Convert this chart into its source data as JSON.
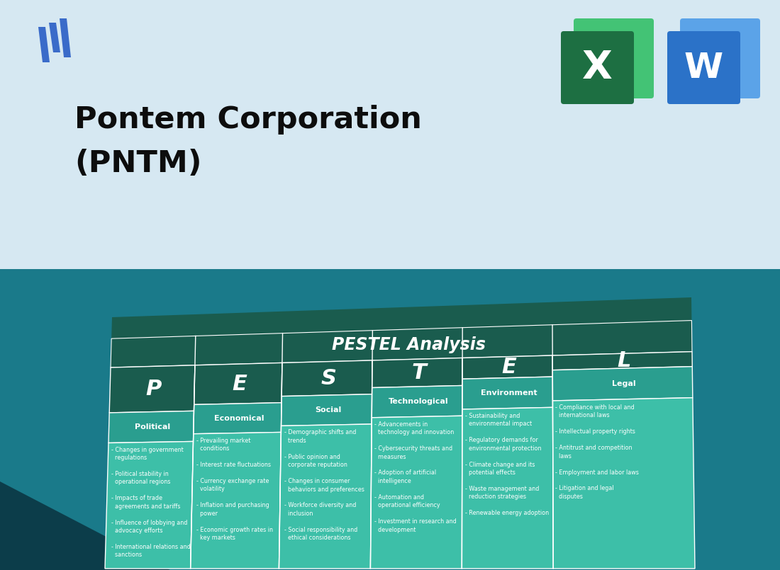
{
  "title_line1": "Pontem Corporation",
  "title_line2": "(PNTM)",
  "pestel_title": "PESTEL Analysis",
  "top_bg": "#d6e8f2",
  "bottom_bg_top": "#1a7a8a",
  "bottom_bg_bot": "#1a6070",
  "table_dark": "#1a5c4e",
  "table_mid": "#2a9e8f",
  "table_light": "#3dbfa8",
  "white": "#ffffff",
  "columns": [
    "P",
    "E",
    "S",
    "T",
    "E",
    "L"
  ],
  "col_labels": [
    "Political",
    "Economical",
    "Social",
    "Technological",
    "Environment",
    "Legal"
  ],
  "col_contents": [
    "- Changes in government\n  regulations\n\n- Political stability in\n  operational regions\n\n- Impacts of trade\n  agreements and tariffs\n\n- Influence of lobbying and\n  advocacy efforts\n\n- International relations and\n  sanctions",
    "- Prevailing market\n  conditions\n\n- Interest rate fluctuations\n\n- Currency exchange rate\n  volatility\n\n- Inflation and purchasing\n  power\n\n- Economic growth rates in\n  key markets",
    "- Demographic shifts and\n  trends\n\n- Public opinion and\n  corporate reputation\n\n- Changes in consumer\n  behaviors and preferences\n\n- Workforce diversity and\n  inclusion\n\n- Social responsibility and\n  ethical considerations",
    "- Advancements in\n  technology and innovation\n\n- Cybersecurity threats and\n  measures\n\n- Adoption of artificial\n  intelligence\n\n- Automation and\n  operational efficiency\n\n- Investment in research and\n  development",
    "- Sustainability and\n  environmental impact\n\n- Regulatory demands for\n  environmental protection\n\n- Climate change and its\n  potential effects\n\n- Waste management and\n  reduction strategies\n\n- Renewable energy adoption",
    "- Compliance with local and\n  international laws\n\n- Intellectual property rights\n\n- Antitrust and competition\n  laws\n\n- Employment and labor laws\n\n- Litigation and legal\n  disputes"
  ],
  "logo_color": "#3a6bc9",
  "excel_green_dark": "#1d6f42",
  "excel_green_mid": "#21a45d",
  "excel_green_light": "#43c375",
  "word_blue_dark": "#1a47a0",
  "word_blue_mid": "#2b72c8",
  "word_blue_light": "#5ba3e8"
}
